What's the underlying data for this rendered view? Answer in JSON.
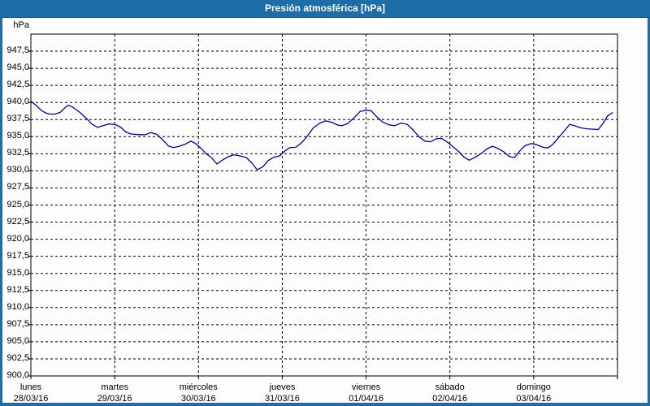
{
  "window": {
    "title": "Presión atmosférica [hPa]"
  },
  "colors": {
    "frame_blue": "#1e6ca8",
    "titlebar_edge": "#12507d",
    "series_blue": "#0000b3",
    "grid_black": "#000000",
    "plot_background": "#ffffff",
    "text_black": "#000000"
  },
  "chart_data": {
    "type": "line",
    "title": "Presión atmosférica [hPa]",
    "unit_label": "hPa",
    "ylabel": "hPa",
    "ylim": [
      900,
      950
    ],
    "ytick_step": 2.5,
    "grid": "dashed-horizontal-and-vertical",
    "legend_position": "none",
    "yticks": [
      {
        "value": 947.5,
        "label": "947,5"
      },
      {
        "value": 945.0,
        "label": "945,0"
      },
      {
        "value": 942.5,
        "label": "942,5"
      },
      {
        "value": 940.0,
        "label": "940,0"
      },
      {
        "value": 937.5,
        "label": "937,5"
      },
      {
        "value": 935.0,
        "label": "935,0"
      },
      {
        "value": 932.5,
        "label": "932,5"
      },
      {
        "value": 930.0,
        "label": "930,0"
      },
      {
        "value": 927.5,
        "label": "927,5"
      },
      {
        "value": 925.0,
        "label": "925,0"
      },
      {
        "value": 922.5,
        "label": "922,5"
      },
      {
        "value": 920.0,
        "label": "920,0"
      },
      {
        "value": 917.5,
        "label": "917,5"
      },
      {
        "value": 915.0,
        "label": "915,0"
      },
      {
        "value": 912.5,
        "label": "912,5"
      },
      {
        "value": 910.0,
        "label": "910,0"
      },
      {
        "value": 907.5,
        "label": "907,5"
      },
      {
        "value": 905.0,
        "label": "905,0"
      },
      {
        "value": 902.5,
        "label": "902,5"
      },
      {
        "value": 900.0,
        "label": "900,0"
      }
    ],
    "x_days": [
      {
        "name": "lunes",
        "date": "28/03/16"
      },
      {
        "name": "martes",
        "date": "29/03/16"
      },
      {
        "name": "miércoles",
        "date": "30/03/16"
      },
      {
        "name": "jueves",
        "date": "31/03/16"
      },
      {
        "name": "viernes",
        "date": "01/04/16"
      },
      {
        "name": "sábado",
        "date": "02/04/16"
      },
      {
        "name": "domingo",
        "date": "03/04/16"
      }
    ],
    "series": [
      {
        "name": "Presión atmosférica [hPa]",
        "color": "#0000b3",
        "points_days_hpa": [
          [
            0.0,
            940.2
          ],
          [
            0.06,
            939.6
          ],
          [
            0.13,
            938.8
          ],
          [
            0.18,
            938.45
          ],
          [
            0.23,
            938.3
          ],
          [
            0.29,
            938.3
          ],
          [
            0.35,
            938.55
          ],
          [
            0.42,
            939.4
          ],
          [
            0.45,
            939.6
          ],
          [
            0.5,
            939.3
          ],
          [
            0.58,
            938.6
          ],
          [
            0.66,
            937.7
          ],
          [
            0.73,
            936.8
          ],
          [
            0.8,
            936.35
          ],
          [
            0.86,
            936.6
          ],
          [
            0.93,
            936.85
          ],
          [
            1.0,
            936.8
          ],
          [
            1.07,
            936.4
          ],
          [
            1.13,
            935.7
          ],
          [
            1.19,
            935.4
          ],
          [
            1.28,
            935.3
          ],
          [
            1.37,
            935.3
          ],
          [
            1.43,
            935.6
          ],
          [
            1.5,
            935.35
          ],
          [
            1.57,
            934.6
          ],
          [
            1.64,
            933.65
          ],
          [
            1.7,
            933.4
          ],
          [
            1.76,
            933.55
          ],
          [
            1.84,
            933.9
          ],
          [
            1.91,
            934.35
          ],
          [
            1.97,
            933.95
          ],
          [
            2.03,
            933.3
          ],
          [
            2.09,
            932.5
          ],
          [
            2.15,
            932.0
          ],
          [
            2.22,
            931.0
          ],
          [
            2.29,
            931.6
          ],
          [
            2.36,
            932.1
          ],
          [
            2.42,
            932.35
          ],
          [
            2.49,
            932.2
          ],
          [
            2.57,
            931.95
          ],
          [
            2.64,
            931.1
          ],
          [
            2.7,
            930.15
          ],
          [
            2.77,
            930.6
          ],
          [
            2.83,
            931.5
          ],
          [
            2.9,
            932.0
          ],
          [
            2.97,
            932.2
          ],
          [
            3.03,
            932.9
          ],
          [
            3.09,
            933.4
          ],
          [
            3.16,
            933.45
          ],
          [
            3.23,
            934.1
          ],
          [
            3.3,
            935.1
          ],
          [
            3.37,
            936.3
          ],
          [
            3.45,
            937.0
          ],
          [
            3.52,
            937.3
          ],
          [
            3.59,
            937.1
          ],
          [
            3.66,
            936.7
          ],
          [
            3.71,
            936.6
          ],
          [
            3.78,
            936.9
          ],
          [
            3.86,
            937.8
          ],
          [
            3.93,
            938.7
          ],
          [
            4.0,
            938.85
          ],
          [
            4.06,
            938.8
          ],
          [
            4.12,
            938.0
          ],
          [
            4.19,
            937.2
          ],
          [
            4.27,
            936.75
          ],
          [
            4.34,
            936.6
          ],
          [
            4.42,
            937.0
          ],
          [
            4.49,
            936.8
          ],
          [
            4.56,
            936.0
          ],
          [
            4.63,
            935.0
          ],
          [
            4.7,
            934.35
          ],
          [
            4.77,
            934.25
          ],
          [
            4.84,
            934.7
          ],
          [
            4.9,
            934.75
          ],
          [
            4.96,
            934.3
          ],
          [
            5.03,
            933.6
          ],
          [
            5.1,
            932.9
          ],
          [
            5.17,
            932.0
          ],
          [
            5.23,
            931.55
          ],
          [
            5.29,
            931.9
          ],
          [
            5.37,
            932.5
          ],
          [
            5.44,
            933.2
          ],
          [
            5.51,
            933.6
          ],
          [
            5.57,
            933.3
          ],
          [
            5.64,
            932.8
          ],
          [
            5.71,
            932.1
          ],
          [
            5.77,
            931.95
          ],
          [
            5.84,
            933.0
          ],
          [
            5.9,
            933.7
          ],
          [
            5.97,
            934.0
          ],
          [
            6.04,
            933.8
          ],
          [
            6.11,
            933.45
          ],
          [
            6.17,
            933.35
          ],
          [
            6.23,
            933.9
          ],
          [
            6.3,
            934.9
          ],
          [
            6.37,
            935.9
          ],
          [
            6.43,
            936.8
          ],
          [
            6.5,
            936.55
          ],
          [
            6.56,
            936.3
          ],
          [
            6.63,
            936.15
          ],
          [
            6.7,
            936.1
          ],
          [
            6.77,
            936.05
          ],
          [
            6.83,
            937.0
          ],
          [
            6.88,
            938.0
          ],
          [
            6.94,
            938.5
          ]
        ]
      }
    ]
  }
}
